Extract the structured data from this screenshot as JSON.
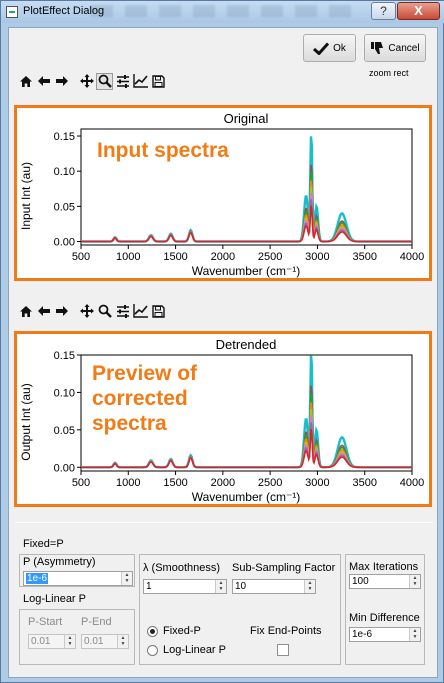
{
  "window": {
    "title": "PlotEffect Dialog",
    "help_label": "?",
    "close_label": "X"
  },
  "buttons": {
    "ok_label": "Ok",
    "cancel_label": "Cancel"
  },
  "zoom_mode_label": "zoom rect",
  "toolbar_icons": [
    "home-icon",
    "back-arrow-icon",
    "forward-arrow-icon",
    "pan-icon",
    "zoom-icon",
    "subplots-config-icon",
    "edit-curves-icon",
    "save-icon"
  ],
  "plots": {
    "original": {
      "title": "Original",
      "ylabel": "Input Int (au)",
      "xlabel": "Wavenumber (cm⁻¹)",
      "annotation": "Input spectra"
    },
    "detrended": {
      "title": "Detrended",
      "ylabel": "Output Int (au)",
      "xlabel": "Wavenumber (cm⁻¹)",
      "annotation_lines": [
        "Preview of",
        "corrected",
        "spectra"
      ]
    },
    "x_ticks": [
      "500",
      "1000",
      "1500",
      "2000",
      "2500",
      "3000",
      "3500",
      "4000"
    ],
    "y_ticks": [
      "0.00",
      "0.05",
      "0.10",
      "0.15"
    ]
  },
  "controls": {
    "mode_label": "Fixed=P",
    "p_asym_label": "P (Asymmetry)",
    "p_asym_value": "1e-6",
    "log_linear_label": "Log-Linear P",
    "p_start_label": "P-Start",
    "p_end_label": "P-End",
    "p_start_value": "0.01",
    "p_end_value": "0.01",
    "lambda_label": "λ (Smoothness)",
    "lambda_value": "1",
    "subsampling_label": "Sub-Sampling Factor",
    "subsampling_value": "10",
    "radio_fixed_label": "Fixed-P",
    "radio_loglinear_label": "Log-Linear P",
    "fix_endpoints_label": "Fix End-Points",
    "max_iter_label": "Max Iterations",
    "max_iter_value": "100",
    "min_diff_label": "Min Difference",
    "min_diff_value": "1e-6"
  },
  "colors": {
    "annotation": "#f27b15",
    "frame": "#f07a18",
    "series": [
      "#1f77b4",
      "#ff7f0e",
      "#2ca02c",
      "#d62728",
      "#9467bd",
      "#8c564b",
      "#e377c2",
      "#7f7f7f",
      "#bcbd22",
      "#17becf"
    ]
  },
  "chart_data": [
    {
      "type": "line",
      "title": "Original",
      "xlabel": "Wavenumber (cm⁻¹)",
      "ylabel": "Input Int (au)",
      "xlim": [
        500,
        4000
      ],
      "ylim": [
        -0.005,
        0.16
      ],
      "x_ticks": [
        500,
        1000,
        1500,
        2000,
        2500,
        3000,
        3500,
        4000
      ],
      "y_ticks": [
        0.0,
        0.05,
        0.1,
        0.15
      ],
      "series_peaks": [
        {
          "peak_scale": 1.0,
          "color": "#17becf"
        },
        {
          "peak_scale": 0.73,
          "color": "#8c564b"
        },
        {
          "peak_scale": 0.66,
          "color": "#2ca02c"
        },
        {
          "peak_scale": 0.58,
          "color": "#ff7f0e"
        },
        {
          "peak_scale": 0.52,
          "color": "#bcbd22"
        },
        {
          "peak_scale": 0.46,
          "color": "#e377c2"
        },
        {
          "peak_scale": 0.4,
          "color": "#9467bd"
        },
        {
          "peak_scale": 0.34,
          "color": "#d62728"
        }
      ],
      "peaks": [
        {
          "x": 860,
          "y": 0.006
        },
        {
          "x": 1240,
          "y": 0.009
        },
        {
          "x": 1450,
          "y": 0.011
        },
        {
          "x": 1660,
          "y": 0.016
        },
        {
          "x": 2880,
          "y": 0.065
        },
        {
          "x": 2935,
          "y": 0.153
        },
        {
          "x": 2990,
          "y": 0.05
        },
        {
          "x": 3260,
          "y": 0.04
        }
      ]
    },
    {
      "type": "line",
      "title": "Detrended",
      "xlabel": "Wavenumber (cm⁻¹)",
      "ylabel": "Output Int (au)",
      "xlim": [
        500,
        4000
      ],
      "ylim": [
        -0.005,
        0.15
      ],
      "x_ticks": [
        500,
        1000,
        1500,
        2000,
        2500,
        3000,
        3500,
        4000
      ],
      "y_ticks": [
        0.0,
        0.05,
        0.1,
        0.15
      ],
      "series_peaks": [
        {
          "peak_scale": 1.0,
          "color": "#17becf"
        },
        {
          "peak_scale": 0.73,
          "color": "#8c564b"
        },
        {
          "peak_scale": 0.66,
          "color": "#2ca02c"
        },
        {
          "peak_scale": 0.58,
          "color": "#ff7f0e"
        },
        {
          "peak_scale": 0.52,
          "color": "#bcbd22"
        },
        {
          "peak_scale": 0.46,
          "color": "#e377c2"
        },
        {
          "peak_scale": 0.4,
          "color": "#9467bd"
        },
        {
          "peak_scale": 0.34,
          "color": "#d62728"
        }
      ],
      "peaks": [
        {
          "x": 860,
          "y": 0.006
        },
        {
          "x": 1240,
          "y": 0.009
        },
        {
          "x": 1450,
          "y": 0.011
        },
        {
          "x": 1660,
          "y": 0.016
        },
        {
          "x": 2880,
          "y": 0.065
        },
        {
          "x": 2935,
          "y": 0.153
        },
        {
          "x": 2990,
          "y": 0.05
        },
        {
          "x": 3260,
          "y": 0.04
        }
      ]
    }
  ]
}
